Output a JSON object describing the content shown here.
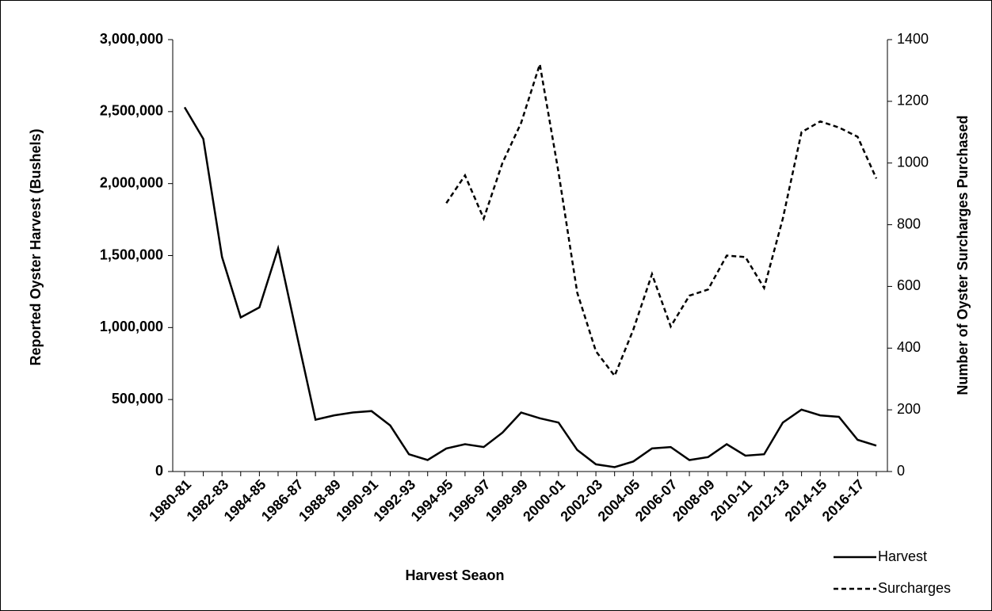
{
  "chart_data": {
    "type": "line",
    "x_label": "Harvest Seaon",
    "y_label": "Reported Oyster Harvest (Bushels)",
    "y2_label": "Number of Oyster Surcharges Purchased",
    "categories": [
      "1980-81",
      null,
      "1982-83",
      null,
      "1984-85",
      null,
      "1986-87",
      null,
      "1988-89",
      null,
      "1990-91",
      null,
      "1992-93",
      null,
      "1994-95",
      null,
      "1996-97",
      null,
      "1998-99",
      null,
      "2000-01",
      null,
      "2002-03",
      null,
      "2004-05",
      null,
      "2006-07",
      null,
      "2008-09",
      null,
      "2010-11",
      null,
      "2012-13",
      null,
      "2014-15",
      null,
      "2016-17",
      null
    ],
    "series": [
      {
        "name": "Harvest",
        "color": "#000000",
        "dash": "solid",
        "axis": "y",
        "values": [
          2530000,
          2310000,
          1490000,
          1070000,
          1140000,
          1550000,
          950000,
          360000,
          390000,
          410000,
          420000,
          320000,
          120000,
          80000,
          160000,
          190000,
          170000,
          270000,
          410000,
          370000,
          340000,
          150000,
          50000,
          30000,
          70000,
          160000,
          170000,
          80000,
          100000,
          190000,
          110000,
          120000,
          340000,
          430000,
          390000,
          380000,
          220000,
          180000
        ]
      },
      {
        "name": "Surcharges",
        "color": "#000000",
        "dash": "dashed",
        "axis": "y2",
        "values": [
          null,
          null,
          null,
          null,
          null,
          null,
          null,
          null,
          null,
          null,
          null,
          null,
          null,
          null,
          870,
          960,
          820,
          1000,
          1130,
          1320,
          970,
          580,
          390,
          310,
          460,
          640,
          470,
          570,
          590,
          700,
          695,
          595,
          820,
          1100,
          1135,
          1115,
          1085,
          950
        ]
      }
    ],
    "ylim": [
      0,
      3000000
    ],
    "yticks": [
      0,
      {
        "value": 500000,
        "label": "500,000"
      },
      {
        "value": 1000000,
        "label": "1,000,000"
      },
      {
        "value": 1500000,
        "label": "1,500,000"
      },
      {
        "value": 2000000,
        "label": "2,000,000"
      },
      {
        "value": 2500000,
        "label": "2,500,000"
      },
      {
        "value": 3000000,
        "label": "3,000,000"
      }
    ],
    "y2lim": [
      0,
      1400
    ],
    "y2ticks": [
      0,
      200,
      400,
      600,
      800,
      1000,
      1200,
      1400
    ],
    "legend": "bottom-right"
  }
}
